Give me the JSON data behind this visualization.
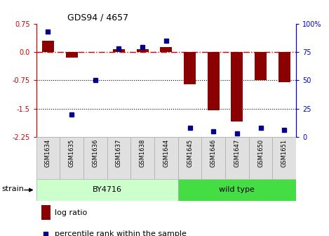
{
  "title": "GDS94 / 4657",
  "samples": [
    "GSM1634",
    "GSM1635",
    "GSM1636",
    "GSM1637",
    "GSM1638",
    "GSM1644",
    "GSM1645",
    "GSM1646",
    "GSM1647",
    "GSM1650",
    "GSM1651"
  ],
  "log_ratios": [
    0.3,
    -0.15,
    0.0,
    0.07,
    0.07,
    0.13,
    -0.85,
    -1.55,
    -1.85,
    -0.75,
    -0.8
  ],
  "percentile_ranks": [
    93,
    20,
    50,
    78,
    79,
    85,
    8,
    5,
    3,
    8,
    6
  ],
  "groups": [
    {
      "label": "BY4716",
      "start": 0,
      "end": 5,
      "color_face": "#ccffcc",
      "color_edge": "#aaaaaa"
    },
    {
      "label": "wild type",
      "start": 6,
      "end": 10,
      "color_face": "#44dd44",
      "color_edge": "#aaaaaa"
    }
  ],
  "strain_label": "strain",
  "bar_color": "#8b0000",
  "dot_color": "#00008b",
  "ylim_left": [
    -2.25,
    0.75
  ],
  "ylim_right": [
    0,
    100
  ],
  "yticks_left": [
    0.75,
    0.0,
    -0.75,
    -1.5,
    -2.25
  ],
  "yticks_right": [
    100,
    75,
    50,
    25,
    0
  ],
  "hline_y": 0.0,
  "dotted_lines": [
    -0.75,
    -1.5
  ],
  "background_color": "#ffffff",
  "plot_bg": "#ffffff",
  "left_color": "#cc0000",
  "right_color": "#0000cc"
}
